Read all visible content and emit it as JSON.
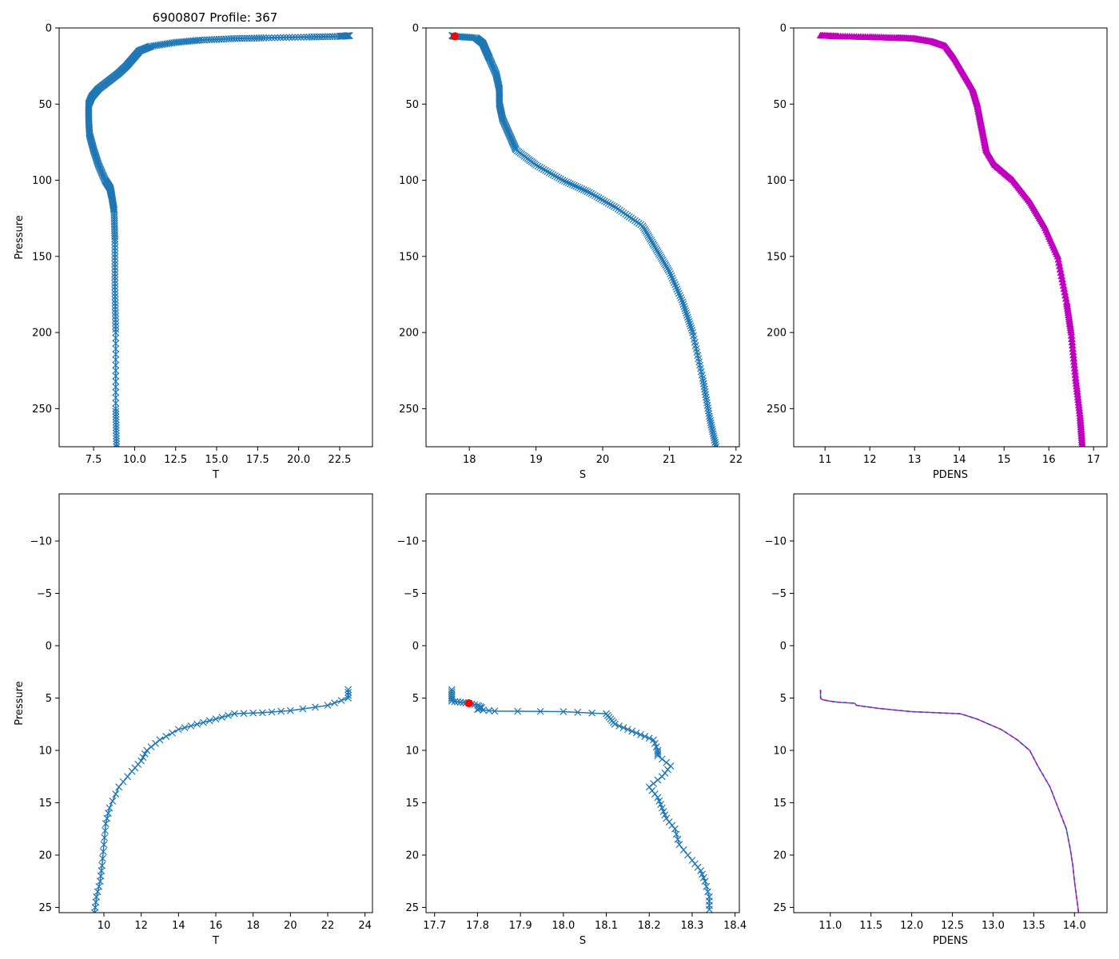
{
  "figure_title": "6900807 Profile: 367",
  "colors": {
    "line": "#1f77b4",
    "flag": "#ff0000",
    "density": "#bf00bf",
    "density_fit": "#1f77b4"
  },
  "chart_data": [
    {
      "type": "line",
      "panel": "top-left",
      "title": "6900807 Profile: 367",
      "xlabel": "T",
      "ylabel": "Pressure",
      "xlim": [
        5.4,
        24.5
      ],
      "ylim": [
        275,
        0
      ],
      "xticks": [
        "7.5",
        "10.0",
        "12.5",
        "15.0",
        "17.5",
        "20.0",
        "22.5"
      ],
      "xtick_values": [
        7.5,
        10.0,
        12.5,
        15.0,
        17.5,
        20.0,
        22.5
      ],
      "yticks": [
        "0",
        "50",
        "100",
        "150",
        "200",
        "250"
      ],
      "ytick_values": [
        0,
        50,
        100,
        150,
        200,
        250
      ],
      "marker": "x",
      "series": [
        {
          "name": "T",
          "x": [
            23.1,
            22.5,
            20.5,
            18.0,
            16.0,
            14.0,
            12.5,
            11.0,
            10.3,
            9.9,
            9.5,
            9.0,
            8.4,
            7.8,
            7.4,
            7.2,
            7.2,
            7.25,
            7.5,
            7.8,
            8.2,
            8.5,
            8.6,
            8.75,
            8.8,
            8.8,
            8.85,
            8.85,
            8.9
          ],
          "y": [
            5,
            5.5,
            6,
            6.5,
            7,
            8,
            9.5,
            12,
            15,
            20,
            25,
            30,
            35,
            40,
            45,
            50,
            60,
            70,
            80,
            90,
            100,
            105,
            110,
            120,
            140,
            170,
            200,
            250,
            275
          ]
        }
      ]
    },
    {
      "type": "line",
      "panel": "top-middle",
      "xlabel": "S",
      "ylabel": "",
      "xlim": [
        17.35,
        22.05
      ],
      "ylim": [
        275,
        0
      ],
      "xticks": [
        "18",
        "19",
        "20",
        "21",
        "22"
      ],
      "xtick_values": [
        18,
        19,
        20,
        21,
        22
      ],
      "yticks": [
        "0",
        "50",
        "100",
        "150",
        "200",
        "250"
      ],
      "ytick_values": [
        0,
        50,
        100,
        150,
        200,
        250
      ],
      "marker": "x",
      "series": [
        {
          "name": "S",
          "x": [
            17.74,
            17.78,
            18.1,
            18.2,
            18.25,
            18.3,
            18.4,
            18.45,
            18.45,
            18.5,
            18.6,
            18.7,
            19.0,
            19.4,
            19.8,
            20.2,
            20.6,
            20.8,
            21.0,
            21.2,
            21.35,
            21.5,
            21.6,
            21.7
          ],
          "y": [
            5,
            5.5,
            6.5,
            10,
            15,
            20,
            30,
            40,
            50,
            60,
            70,
            80,
            90,
            100,
            108,
            118,
            130,
            145,
            160,
            180,
            200,
            230,
            255,
            275
          ]
        }
      ],
      "flagged_points": [
        {
          "x": 17.78,
          "y": 5.5
        }
      ]
    },
    {
      "type": "line",
      "panel": "top-right",
      "xlabel": "PDENS",
      "ylabel": "",
      "xlim": [
        10.3,
        17.3
      ],
      "ylim": [
        275,
        0
      ],
      "xticks": [
        "11",
        "12",
        "13",
        "14",
        "15",
        "16",
        "17"
      ],
      "xtick_values": [
        11,
        12,
        13,
        14,
        15,
        16,
        17
      ],
      "yticks": [
        "0",
        "50",
        "100",
        "150",
        "200",
        "250"
      ],
      "ytick_values": [
        0,
        50,
        100,
        150,
        200,
        250
      ],
      "marker": "^",
      "series": [
        {
          "name": "PDENS",
          "x": [
            10.9,
            11.3,
            12.0,
            12.6,
            13.0,
            13.4,
            13.7,
            13.9,
            14.1,
            14.3,
            14.4,
            14.5,
            14.6,
            14.8,
            15.2,
            15.6,
            15.9,
            16.2,
            16.4,
            16.5,
            16.6,
            16.7,
            16.75
          ],
          "y": [
            5,
            5.5,
            6,
            6.5,
            7,
            9,
            12,
            20,
            30,
            40,
            50,
            65,
            80,
            90,
            100,
            115,
            130,
            150,
            180,
            200,
            230,
            255,
            275
          ]
        }
      ]
    },
    {
      "type": "line",
      "panel": "bottom-left",
      "xlabel": "T",
      "ylabel": "Pressure",
      "xlim": [
        7.6,
        24.4
      ],
      "ylim": [
        25.5,
        -14.5
      ],
      "xticks": [
        "10",
        "12",
        "14",
        "16",
        "18",
        "20",
        "22",
        "24"
      ],
      "xtick_values": [
        10,
        12,
        14,
        16,
        18,
        20,
        22,
        24
      ],
      "yticks": [
        "−10",
        "−5",
        "0",
        "5",
        "10",
        "15",
        "20",
        "25"
      ],
      "ytick_values": [
        -10,
        -5,
        0,
        5,
        10,
        15,
        20,
        25
      ],
      "marker": "x",
      "series": [
        {
          "name": "T",
          "x": [
            23.1,
            23.1,
            22.0,
            20.0,
            18.5,
            17.0,
            16.0,
            15.0,
            14.0,
            13.0,
            12.3,
            12.0,
            11.5,
            10.8,
            10.3,
            10.1,
            10.0,
            9.9,
            9.8,
            9.6,
            9.5
          ],
          "y": [
            4.2,
            5.0,
            5.7,
            6.2,
            6.4,
            6.5,
            7.0,
            7.5,
            8.0,
            9.0,
            10.0,
            11.0,
            12.0,
            13.5,
            15.5,
            17.0,
            19.0,
            21.0,
            22.5,
            24.0,
            25.5
          ]
        }
      ]
    },
    {
      "type": "line",
      "panel": "bottom-middle",
      "xlabel": "S",
      "ylabel": "",
      "xlim": [
        17.68,
        18.41
      ],
      "ylim": [
        25.5,
        -14.5
      ],
      "xticks": [
        "17.7",
        "17.8",
        "17.9",
        "18.0",
        "18.1",
        "18.2",
        "18.3",
        "18.4"
      ],
      "xtick_values": [
        17.7,
        17.8,
        17.9,
        18.0,
        18.1,
        18.2,
        18.3,
        18.4
      ],
      "yticks": [
        "−10",
        "−5",
        "0",
        "5",
        "10",
        "15",
        "20",
        "25"
      ],
      "ytick_values": [
        -10,
        -5,
        0,
        5,
        10,
        15,
        20,
        25
      ],
      "marker": "x",
      "series": [
        {
          "name": "S",
          "x": [
            17.74,
            17.74,
            17.74,
            17.76,
            17.78,
            17.8,
            17.81,
            17.8,
            17.84,
            18.0,
            18.1,
            18.11,
            18.12,
            18.15,
            18.18,
            18.21,
            18.22,
            18.22,
            18.25,
            18.23,
            18.2,
            18.22,
            18.23,
            18.24,
            18.26,
            18.27,
            18.3,
            18.32,
            18.33,
            18.34,
            18.34
          ],
          "y": [
            4.2,
            4.8,
            5.3,
            5.4,
            5.5,
            5.7,
            5.9,
            6.1,
            6.25,
            6.3,
            6.5,
            7.0,
            7.5,
            8.0,
            8.5,
            9.0,
            10.0,
            10.5,
            11.5,
            12.5,
            13.5,
            14.5,
            15.5,
            16.5,
            17.5,
            19.0,
            20.5,
            21.5,
            22.5,
            24.0,
            25.2
          ]
        }
      ],
      "flagged_points": [
        {
          "x": 17.78,
          "y": 5.5
        }
      ]
    },
    {
      "type": "line",
      "panel": "bottom-right",
      "xlabel": "PDENS",
      "ylabel": "",
      "xlim": [
        10.55,
        14.4
      ],
      "ylim": [
        25.5,
        -14.5
      ],
      "xticks": [
        "11.0",
        "11.5",
        "12.0",
        "12.5",
        "13.0",
        "13.5",
        "14.0"
      ],
      "xtick_values": [
        11.0,
        11.5,
        12.0,
        12.5,
        13.0,
        13.5,
        14.0
      ],
      "yticks": [
        "−10",
        "−5",
        "0",
        "5",
        "10",
        "15",
        "20",
        "25"
      ],
      "ytick_values": [
        -10,
        -5,
        0,
        5,
        10,
        15,
        20,
        25
      ],
      "marker": "none",
      "series": [
        {
          "name": "PDENS",
          "x": [
            10.88,
            10.88,
            10.9,
            11.0,
            11.1,
            11.3,
            11.32,
            11.6,
            12.0,
            12.6,
            12.8,
            13.1,
            13.3,
            13.45,
            13.55,
            13.7,
            13.8,
            13.9,
            13.95,
            13.98,
            14.0,
            14.05
          ],
          "y": [
            4.2,
            5.0,
            5.15,
            5.3,
            5.4,
            5.5,
            5.7,
            6.0,
            6.3,
            6.5,
            7.0,
            8.0,
            9.0,
            10.0,
            11.5,
            13.5,
            15.5,
            17.5,
            19.5,
            21.0,
            22.5,
            25.5
          ]
        }
      ]
    }
  ]
}
